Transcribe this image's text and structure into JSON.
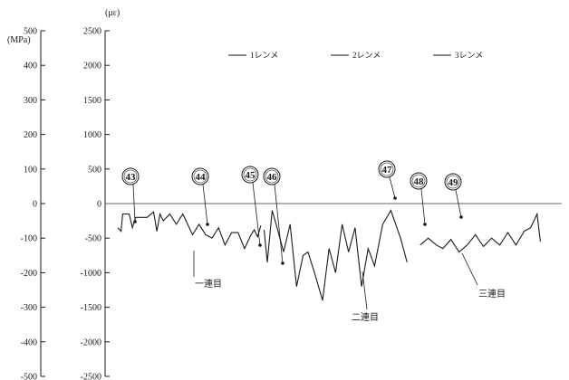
{
  "chart_data": {
    "type": "line",
    "title": "",
    "left_axis": {
      "unit": "(MPa)",
      "ylim": [
        -500,
        500
      ],
      "ticks": [
        "500",
        "400",
        "300",
        "200",
        "100",
        "0",
        "-100",
        "-200",
        "-300",
        "-400",
        "-500"
      ]
    },
    "right_axis": {
      "unit": "(με)",
      "ylim": [
        -2500,
        2500
      ],
      "ticks": [
        "2500",
        "2000",
        "1500",
        "1000",
        "500",
        "0",
        "-500",
        "-1000",
        "-1500",
        "-2000",
        "-2500"
      ]
    },
    "legend": [
      "1レンメ",
      "2レンメ",
      "3レンメ"
    ],
    "callouts": [
      "43",
      "44",
      "45",
      "46",
      "47",
      "48",
      "49"
    ],
    "annotations": [
      "一連目",
      "二連目",
      "三連目"
    ],
    "series": [
      {
        "points": [
          [
            0,
            -350
          ],
          [
            2,
            -400
          ],
          [
            3,
            -150
          ],
          [
            7,
            -150
          ],
          [
            9,
            -350
          ],
          [
            11,
            -200
          ],
          [
            18,
            -200
          ],
          [
            22,
            -120
          ],
          [
            24,
            -400
          ],
          [
            26,
            -150
          ],
          [
            28,
            -250
          ],
          [
            32,
            -150
          ],
          [
            36,
            -300
          ],
          [
            40,
            -150
          ],
          [
            46,
            -450
          ],
          [
            50,
            -300
          ],
          [
            54,
            -450
          ],
          [
            58,
            -500
          ],
          [
            62,
            -350
          ],
          [
            66,
            -600
          ],
          [
            70,
            -420
          ],
          [
            74,
            -420
          ],
          [
            78,
            -650
          ],
          [
            82,
            -450
          ],
          [
            84,
            -380
          ],
          [
            86,
            -480
          ],
          [
            88,
            -320
          ]
        ]
      },
      {
        "points": [
          [
            90,
            -380
          ],
          [
            92,
            -850
          ],
          [
            95,
            -100
          ],
          [
            98,
            -350
          ],
          [
            102,
            -700
          ],
          [
            106,
            -300
          ],
          [
            110,
            -1200
          ],
          [
            114,
            -750
          ],
          [
            117,
            -700
          ],
          [
            121,
            -1000
          ],
          [
            126,
            -1400
          ],
          [
            130,
            -650
          ],
          [
            134,
            -1000
          ],
          [
            138,
            -300
          ],
          [
            142,
            -700
          ],
          [
            146,
            -350
          ],
          [
            150,
            -1200
          ],
          [
            154,
            -650
          ],
          [
            158,
            -900
          ],
          [
            163,
            -300
          ],
          [
            168,
            -100
          ],
          [
            174,
            -500
          ],
          [
            178,
            -850
          ]
        ]
      },
      {
        "points": [
          [
            186,
            -600
          ],
          [
            191,
            -500
          ],
          [
            196,
            -600
          ],
          [
            200,
            -650
          ],
          [
            205,
            -520
          ],
          [
            210,
            -700
          ],
          [
            215,
            -600
          ],
          [
            220,
            -450
          ],
          [
            225,
            -620
          ],
          [
            230,
            -500
          ],
          [
            235,
            -600
          ],
          [
            240,
            -420
          ],
          [
            245,
            -600
          ],
          [
            250,
            -400
          ],
          [
            254,
            -350
          ],
          [
            258,
            -150
          ],
          [
            260,
            -550
          ]
        ]
      }
    ],
    "colors": {
      "line": "#1a1a1a",
      "axis": "#1a1a1a",
      "grid": "#666666"
    }
  }
}
